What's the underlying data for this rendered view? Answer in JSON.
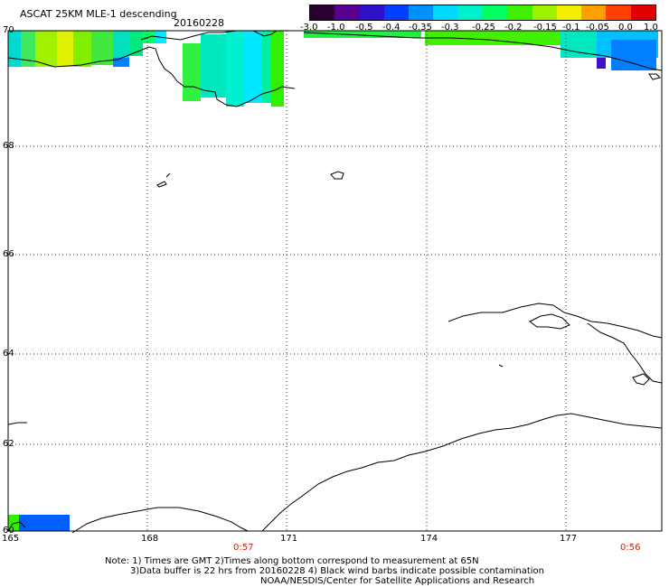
{
  "header": {
    "title": "ASCAT 25KM MLE-1 descending",
    "date": "20160228"
  },
  "colorbar": {
    "tick_labels": [
      "-3.0",
      "-1.0",
      "-0.5",
      "-0.4",
      "-0.35",
      "-0.3",
      "-0.25",
      "-0.2",
      "-0.15",
      "-0.1",
      "-0.05",
      "0.0",
      "1.0"
    ],
    "colors": [
      "#2a0030",
      "#5a0090",
      "#3010c8",
      "#0040ff",
      "#0090ff",
      "#00d8ff",
      "#00f0c8",
      "#00ff60",
      "#40f000",
      "#a0f000",
      "#f0f000",
      "#ffa000",
      "#ff4000",
      "#e00000"
    ]
  },
  "axes": {
    "lon_labels": [
      "165",
      "168",
      "171",
      "174",
      "177"
    ],
    "lat_labels": [
      "70",
      "68",
      "66",
      "64",
      "62",
      "60"
    ]
  },
  "times": {
    "left": "0:57",
    "right": "0:56"
  },
  "notes": {
    "line1": "Note: 1) Times are GMT 2)Times along bottom correspond to measurement at 65N",
    "line2": "3)Data buffer is 22 hrs from 20160228 4) Black wind barbs indicate possible contamination",
    "line3": "NOAA/NESDIS/Center for Satellite Applications and Research"
  }
}
